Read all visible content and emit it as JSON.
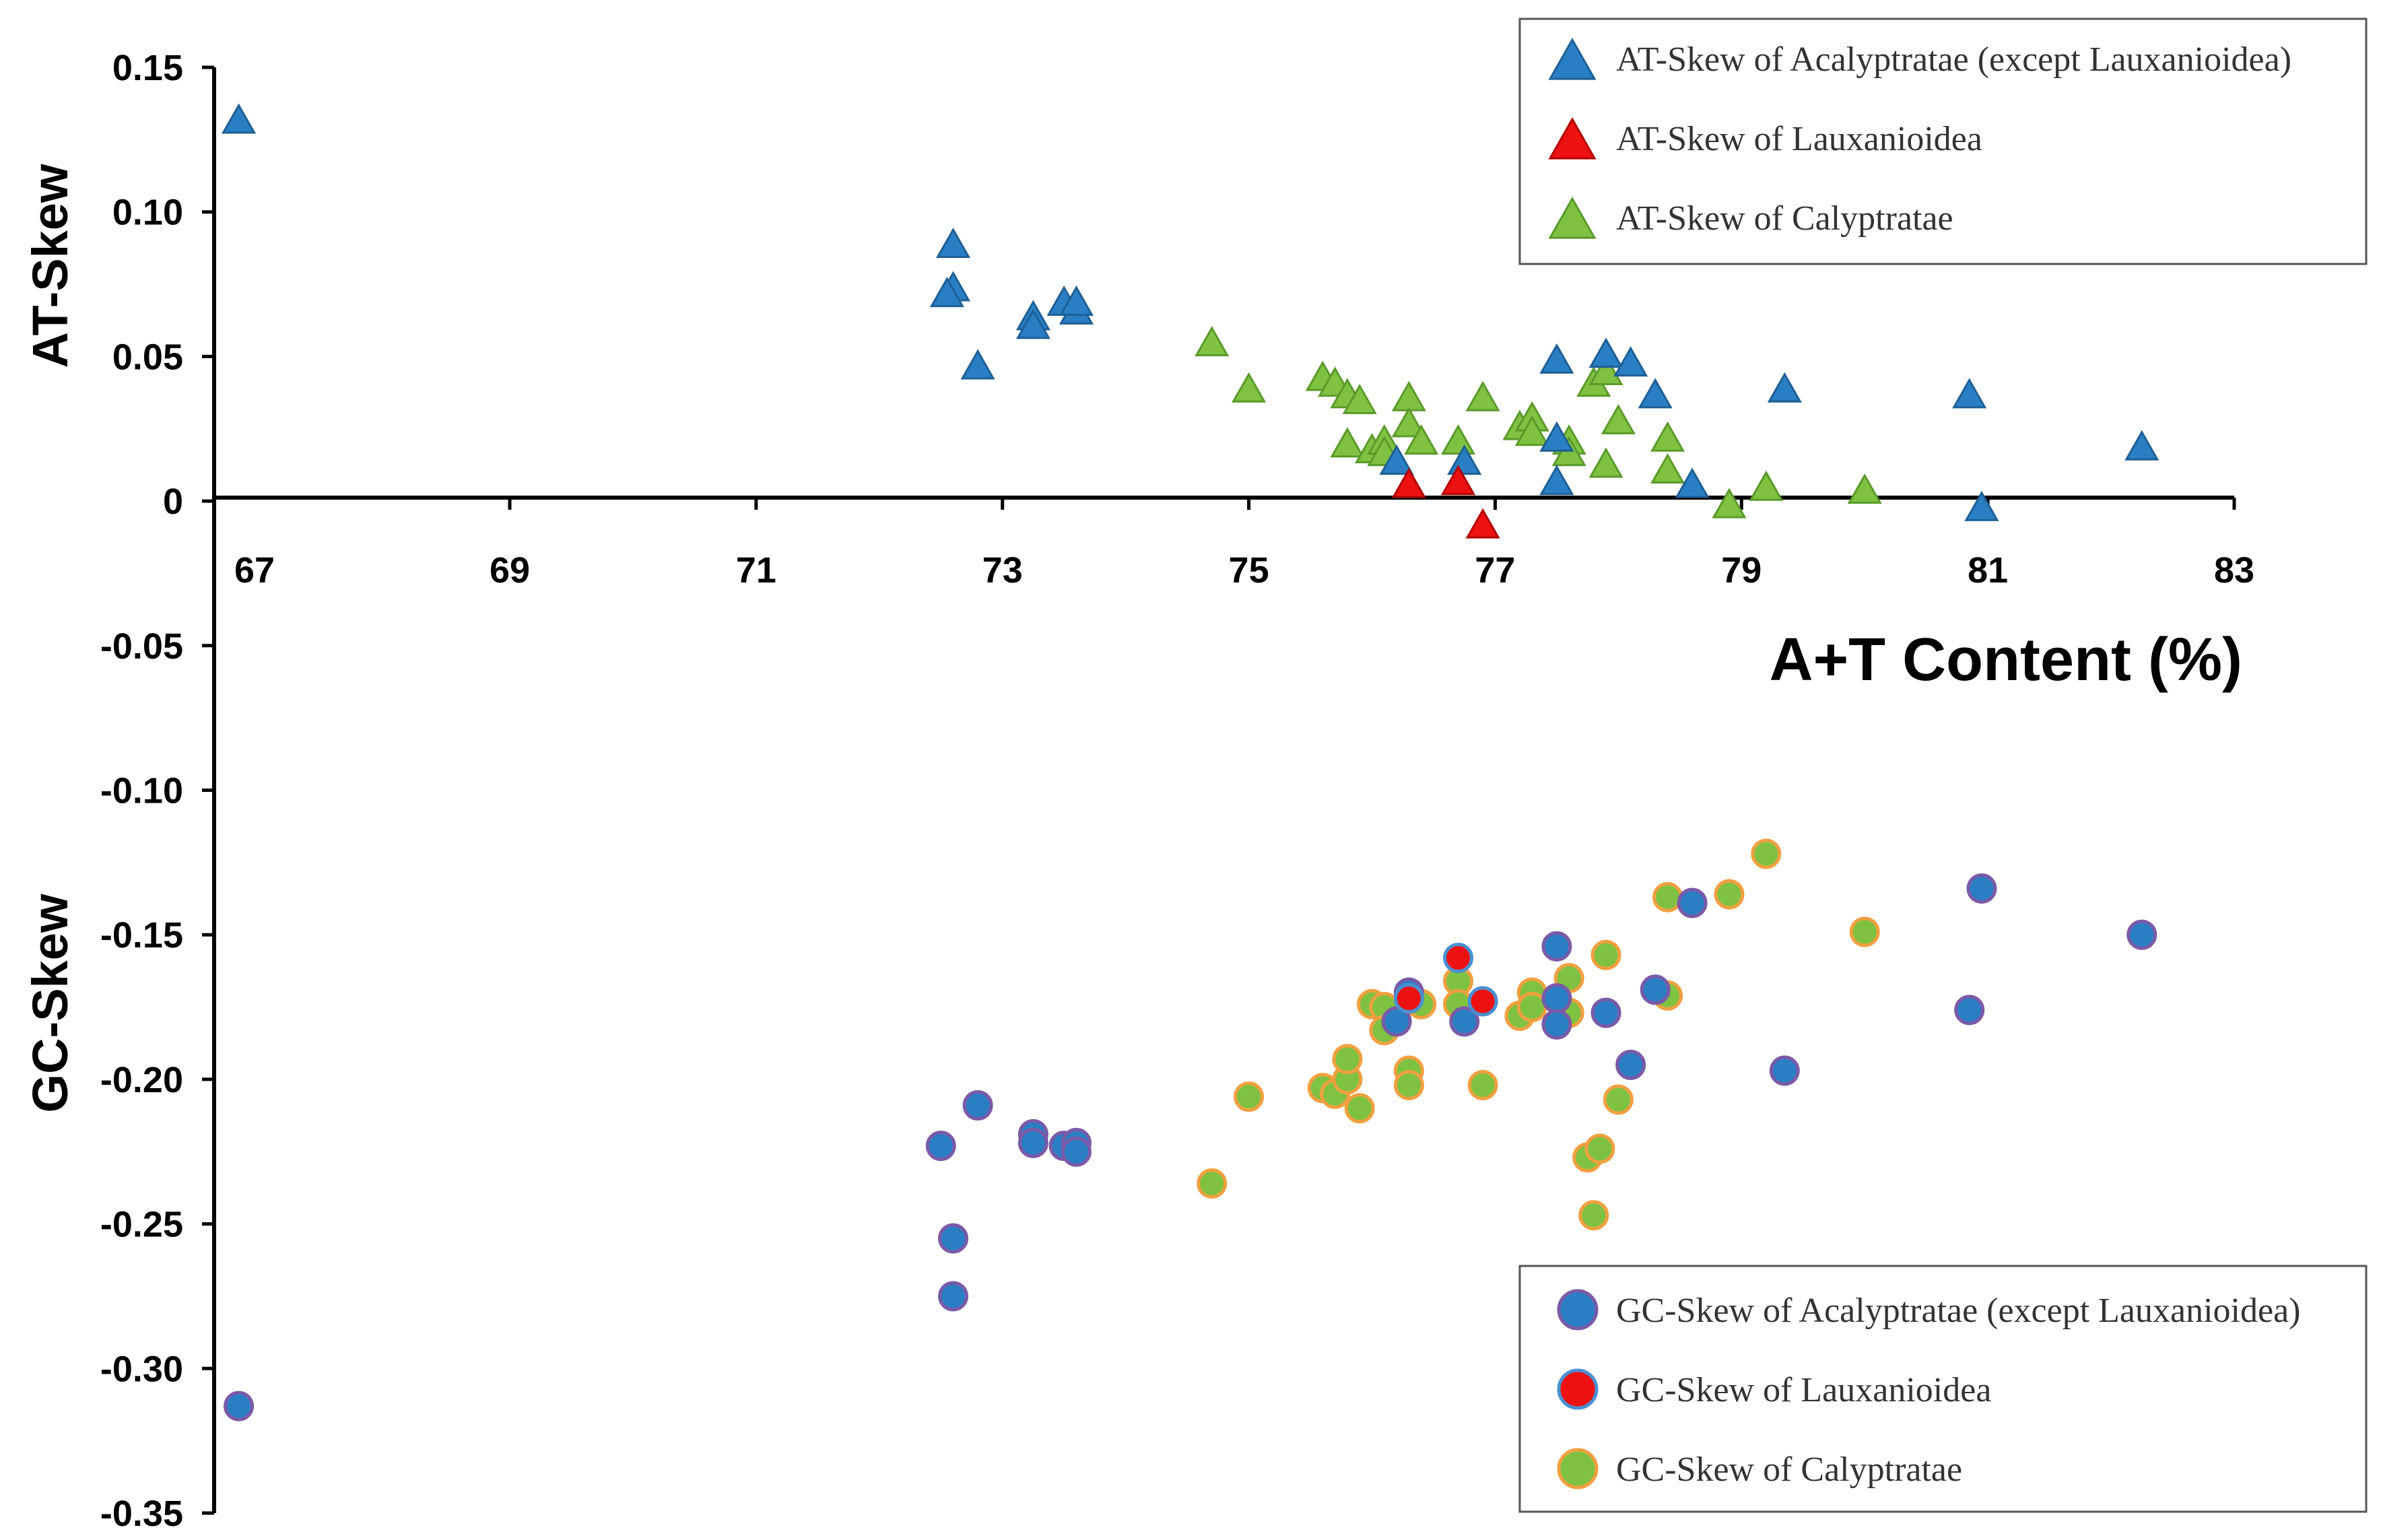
{
  "chart_data": {
    "type": "scatter",
    "title": "",
    "x_axis": {
      "label": "A+T Content (%)",
      "range": [
        66.6,
        83
      ],
      "ticks": [
        "67",
        "69",
        "71",
        "73",
        "75",
        "77",
        "79",
        "81",
        "83"
      ]
    },
    "y_axis": {
      "range": [
        -0.35,
        0.15
      ],
      "ticks": [
        "0.15",
        "0.10",
        "0.05",
        "0",
        "-0.05",
        "-0.10",
        "-0.15",
        "-0.20",
        "-0.25",
        "-0.30",
        "-0.35"
      ],
      "label_upper": "AT-Skew",
      "label_lower": "GC-Skew"
    },
    "legend_at": [
      {
        "label": "AT-Skew of Acalyptratae (except Lauxanioidea)",
        "color": "#2a7fc4",
        "series": "at_acal"
      },
      {
        "label": "AT-Skew of Lauxanioidea",
        "color": "#ee1111",
        "series": "at_laux"
      },
      {
        "label": "AT-Skew of Calyptratae",
        "color": "#7fc241",
        "series": "at_caly"
      }
    ],
    "legend_gc": [
      {
        "label": "GC-Skew of Acalyptratae (except Lauxanioidea)",
        "color": "#2a7fc4",
        "series": "gc_acal"
      },
      {
        "label": "GC-Skew of Lauxanioidea",
        "color": "#ee1111",
        "series": "gc_laux"
      },
      {
        "label": "GC-Skew of Calyptratae",
        "color": "#7fc241",
        "series": "gc_caly"
      }
    ],
    "series": {
      "at_acal": {
        "marker": "triangle",
        "color": "#2a7fc4",
        "points": [
          [
            66.8,
            0.131
          ],
          [
            72.6,
            0.088
          ],
          [
            72.6,
            0.073
          ],
          [
            72.55,
            0.071
          ],
          [
            72.8,
            0.046
          ],
          [
            73.25,
            0.063
          ],
          [
            73.25,
            0.06
          ],
          [
            73.5,
            0.068
          ],
          [
            73.6,
            0.065
          ],
          [
            73.6,
            0.068
          ],
          [
            76.2,
            0.013
          ],
          [
            76.75,
            0.013
          ],
          [
            77.5,
            0.048
          ],
          [
            77.5,
            0.021
          ],
          [
            77.5,
            0.006
          ],
          [
            77.9,
            0.05
          ],
          [
            78.1,
            0.047
          ],
          [
            78.3,
            0.036
          ],
          [
            78.6,
            0.005
          ],
          [
            79.35,
            0.038
          ],
          [
            80.85,
            0.036
          ],
          [
            80.95,
            -0.003
          ],
          [
            82.25,
            0.018
          ]
        ]
      },
      "at_laux": {
        "marker": "triangle",
        "color": "#ee1111",
        "points": [
          [
            76.3,
            0.005
          ],
          [
            76.7,
            0.006
          ],
          [
            76.9,
            -0.009
          ]
        ]
      },
      "at_caly": {
        "marker": "triangle",
        "color": "#7fc241",
        "points": [
          [
            74.7,
            0.054
          ],
          [
            75.0,
            0.038
          ],
          [
            75.6,
            0.042
          ],
          [
            75.7,
            0.04
          ],
          [
            75.8,
            0.036
          ],
          [
            75.9,
            0.034
          ],
          [
            75.8,
            0.019
          ],
          [
            76.0,
            0.017
          ],
          [
            76.1,
            0.02
          ],
          [
            76.1,
            0.016
          ],
          [
            76.3,
            0.035
          ],
          [
            76.3,
            0.026
          ],
          [
            76.4,
            0.02
          ],
          [
            76.7,
            0.02
          ],
          [
            76.9,
            0.035
          ],
          [
            77.2,
            0.025
          ],
          [
            77.3,
            0.028
          ],
          [
            77.3,
            0.023
          ],
          [
            77.6,
            0.02
          ],
          [
            77.6,
            0.016
          ],
          [
            77.8,
            0.04
          ],
          [
            77.9,
            0.044
          ],
          [
            77.9,
            0.012
          ],
          [
            78.0,
            0.027
          ],
          [
            78.4,
            0.021
          ],
          [
            78.4,
            0.01
          ],
          [
            78.9,
            -0.002
          ],
          [
            79.2,
            0.004
          ],
          [
            80.0,
            0.003
          ]
        ]
      },
      "gc_acal": {
        "marker": "circle",
        "color": "#2a7fc4",
        "points": [
          [
            66.8,
            -0.313
          ],
          [
            72.5,
            -0.223
          ],
          [
            72.6,
            -0.255
          ],
          [
            72.6,
            -0.275
          ],
          [
            72.8,
            -0.209
          ],
          [
            73.25,
            -0.219
          ],
          [
            73.25,
            -0.222
          ],
          [
            73.5,
            -0.223
          ],
          [
            73.6,
            -0.222
          ],
          [
            73.6,
            -0.225
          ],
          [
            76.2,
            -0.18
          ],
          [
            76.3,
            -0.17
          ],
          [
            76.75,
            -0.18
          ],
          [
            77.5,
            -0.154
          ],
          [
            77.5,
            -0.172
          ],
          [
            77.5,
            -0.181
          ],
          [
            77.9,
            -0.177
          ],
          [
            78.1,
            -0.195
          ],
          [
            78.3,
            -0.169
          ],
          [
            78.6,
            -0.139
          ],
          [
            79.35,
            -0.197
          ],
          [
            80.85,
            -0.176
          ],
          [
            80.95,
            -0.134
          ],
          [
            82.25,
            -0.15
          ]
        ]
      },
      "gc_laux": {
        "marker": "circle",
        "color": "#ee1111",
        "points": [
          [
            76.3,
            -0.172
          ],
          [
            76.7,
            -0.158
          ],
          [
            76.9,
            -0.173
          ]
        ]
      },
      "gc_caly": {
        "marker": "circle",
        "color": "#7fc241",
        "points": [
          [
            74.7,
            -0.236
          ],
          [
            75.0,
            -0.206
          ],
          [
            75.6,
            -0.203
          ],
          [
            75.7,
            -0.205
          ],
          [
            75.8,
            -0.2
          ],
          [
            75.8,
            -0.193
          ],
          [
            75.9,
            -0.21
          ],
          [
            76.0,
            -0.174
          ],
          [
            76.1,
            -0.175
          ],
          [
            76.1,
            -0.183
          ],
          [
            76.3,
            -0.197
          ],
          [
            76.3,
            -0.202
          ],
          [
            76.4,
            -0.174
          ],
          [
            76.7,
            -0.166
          ],
          [
            76.7,
            -0.174
          ],
          [
            76.9,
            -0.202
          ],
          [
            77.2,
            -0.178
          ],
          [
            77.3,
            -0.17
          ],
          [
            77.3,
            -0.175
          ],
          [
            77.6,
            -0.165
          ],
          [
            77.6,
            -0.177
          ],
          [
            77.75,
            -0.227
          ],
          [
            77.8,
            -0.247
          ],
          [
            77.85,
            -0.224
          ],
          [
            77.9,
            -0.157
          ],
          [
            78.0,
            -0.207
          ],
          [
            78.4,
            -0.137
          ],
          [
            78.4,
            -0.171
          ],
          [
            78.9,
            -0.136
          ],
          [
            79.2,
            -0.122
          ],
          [
            80.0,
            -0.149
          ]
        ]
      }
    }
  }
}
